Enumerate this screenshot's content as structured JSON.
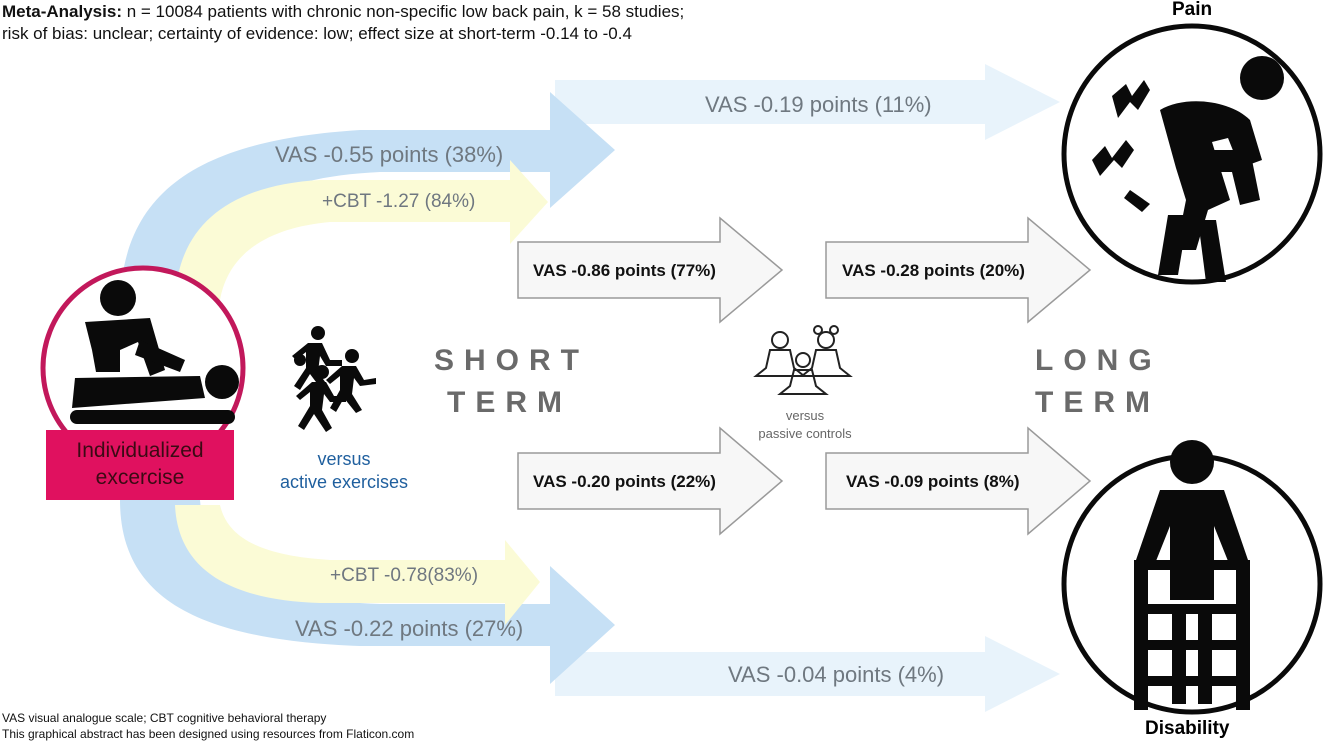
{
  "header": {
    "line1_bold": "Meta-Analysis:",
    "line1_rest": " n = 10084 patients with chronic non-specific low back pain, k = 58 studies;",
    "line2": "risk of bias: unclear; certainty of evidence: low; effect size at short-term -0.14 to -0.4"
  },
  "intervention": {
    "label_line1": "Individualized",
    "label_line2": "excercise",
    "icon": "physiotherapist-massage-icon"
  },
  "comparison_active": {
    "line1": "versus",
    "line2": "active exercises",
    "icon": "running-people-icon"
  },
  "comparison_passive": {
    "line1": "versus",
    "line2": "passive controls",
    "icon": "meditating-people-icon"
  },
  "terms": {
    "short_line1": "SHORT",
    "short_line2": "TERM",
    "long_line1": "LONG",
    "long_line2": "TERM"
  },
  "outcomes": {
    "pain": {
      "label": "Pain",
      "icon": "back-pain-person-icon"
    },
    "disability": {
      "label": "Disability",
      "icon": "person-with-walker-icon"
    }
  },
  "arrows": {
    "pain_active_short": "VAS -0.55 points (38%)",
    "pain_cbt_short": "+CBT -1.27 (84%)",
    "pain_active_long": "VAS -0.19 points (11%)",
    "pain_passive_short": "VAS -0.86 points (77%)",
    "pain_passive_long": "VAS -0.28 points (20%)",
    "dis_passive_short": "VAS -0.20 points (22%)",
    "dis_passive_long": "VAS -0.09 points (8%)",
    "dis_cbt_short": "+CBT -0.78(83%)",
    "dis_active_short": "VAS -0.22 points (27%)",
    "dis_active_long": "VAS -0.04 points (4%)"
  },
  "colors": {
    "blue_arrow": "#c6e0f5",
    "blue_arrow_faint": "#e8f3fb",
    "yellow_arrow": "#fbfbd6",
    "box_arrow_fill": "#f7f7f7",
    "box_arrow_stroke": "#9a9a9a",
    "intervention": "#e0115f",
    "intervention_ring": "#c2185b"
  },
  "footer": {
    "line1": "VAS visual analogue scale; CBT cognitive behavioral therapy",
    "line2": "This graphical abstract has been designed using resources from Flaticon.com"
  }
}
